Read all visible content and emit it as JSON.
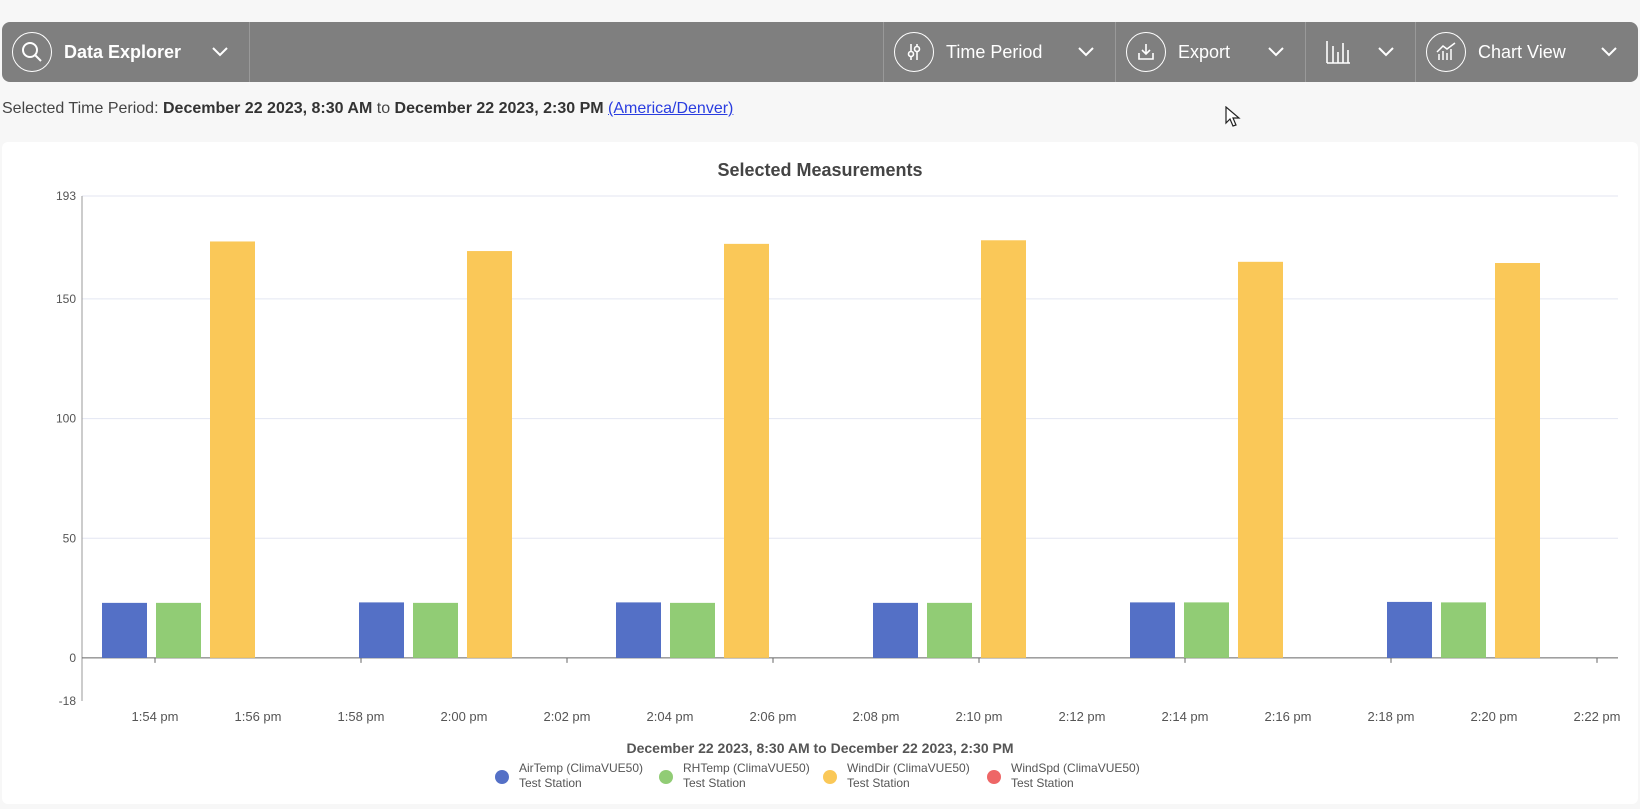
{
  "toolbar": {
    "data_explorer": "Data Explorer",
    "time_period": "Time Period",
    "export": "Export",
    "chart_view": "Chart View"
  },
  "selection": {
    "prefix": "Selected Time Period:",
    "start": "December 22 2023, 8:30 AM",
    "joiner": "to",
    "end": "December 22 2023, 2:30 PM",
    "timezone": "(America/Denver)"
  },
  "chart_data": {
    "type": "bar",
    "title": "Selected Measurements",
    "xlabel": "December 22 2023, 8:30 AM to December 22 2023, 2:30 PM",
    "ylim": [
      -18,
      193
    ],
    "yticks": [
      -18,
      0,
      50,
      100,
      150,
      193
    ],
    "xticks": [
      "1:54 pm",
      "1:56 pm",
      "1:58 pm",
      "2:00 pm",
      "2:02 pm",
      "2:04 pm",
      "2:06 pm",
      "2:08 pm",
      "2:10 pm",
      "2:12 pm",
      "2:14 pm",
      "2:16 pm",
      "2:18 pm",
      "2:20 pm",
      "2:22 pm"
    ],
    "categories": [
      "1:55 pm",
      "2:00 pm",
      "2:05 pm",
      "2:10 pm",
      "2:15 pm",
      "2:20 pm"
    ],
    "series": [
      {
        "name": "AirTemp (ClimaVUE50)",
        "station": "Test Station",
        "color": "#5470c6",
        "values": [
          23,
          23.2,
          23.2,
          23,
          23.2,
          23.4
        ]
      },
      {
        "name": "RHTemp (ClimaVUE50)",
        "station": "Test Station",
        "color": "#91cc75",
        "values": [
          23,
          23,
          23,
          23,
          23.2,
          23.2
        ]
      },
      {
        "name": "WindDir (ClimaVUE50)",
        "station": "Test Station",
        "color": "#fac858",
        "values": [
          174,
          170,
          173,
          174.5,
          165.5,
          165
        ]
      },
      {
        "name": "WindSpd (ClimaVUE50)",
        "station": "Test Station",
        "color": "#ee6666",
        "values": [
          0,
          0,
          0,
          0,
          0,
          0
        ]
      }
    ],
    "grid": true,
    "legend": "bottom"
  }
}
